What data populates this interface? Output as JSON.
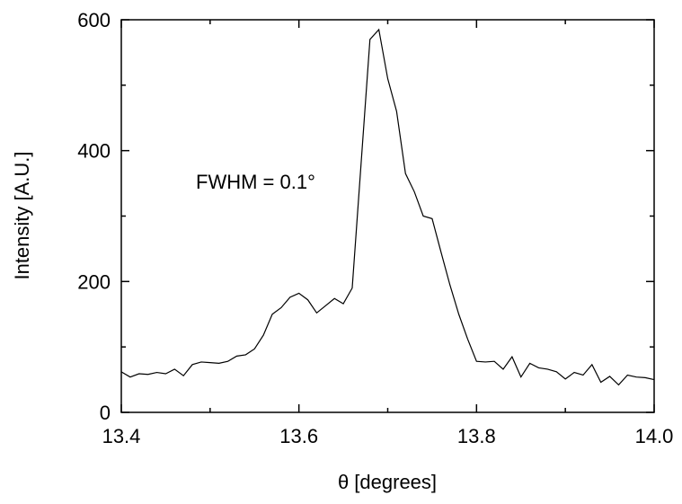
{
  "chart_data": {
    "type": "line",
    "title": "",
    "xlabel": "θ [degrees]",
    "ylabel": "Intensity [A.U.]",
    "xlim": [
      13.4,
      14.0
    ],
    "ylim": [
      0,
      600
    ],
    "x_ticks": [
      13.4,
      13.6,
      13.8,
      14.0
    ],
    "x_tick_labels": [
      "13.4",
      "13.6",
      "13.8",
      "14.0"
    ],
    "y_ticks": [
      0,
      200,
      400,
      600
    ],
    "y_tick_labels": [
      "0",
      "200",
      "400",
      "600"
    ],
    "grid": false,
    "annotation": "FWHM = 0.1°",
    "series": [
      {
        "color": "#000000",
        "x": [
          13.4,
          13.41,
          13.42,
          13.43,
          13.44,
          13.45,
          13.46,
          13.47,
          13.48,
          13.49,
          13.5,
          13.51,
          13.52,
          13.53,
          13.54,
          13.55,
          13.56,
          13.57,
          13.58,
          13.59,
          13.6,
          13.61,
          13.62,
          13.63,
          13.64,
          13.65,
          13.66,
          13.67,
          13.68,
          13.69,
          13.7,
          13.71,
          13.72,
          13.73,
          13.74,
          13.75,
          13.76,
          13.77,
          13.78,
          13.79,
          13.8,
          13.81,
          13.82,
          13.83,
          13.84,
          13.85,
          13.86,
          13.87,
          13.88,
          13.89,
          13.9,
          13.91,
          13.92,
          13.93,
          13.94,
          13.95,
          13.96,
          13.97,
          13.98,
          13.99,
          14.0
        ],
        "y": [
          62,
          54,
          59,
          58,
          61,
          59,
          66,
          56,
          73,
          77,
          76,
          75,
          78,
          86,
          88,
          97,
          118,
          150,
          160,
          176,
          182,
          172,
          152,
          163,
          174,
          166,
          190,
          380,
          570,
          585,
          510,
          460,
          365,
          337,
          300,
          296,
          245,
          195,
          150,
          112,
          78,
          77,
          78,
          66,
          85,
          54,
          75,
          68,
          66,
          62,
          51,
          61,
          57,
          73,
          46,
          55,
          42,
          57,
          54,
          53,
          50
        ]
      }
    ]
  }
}
